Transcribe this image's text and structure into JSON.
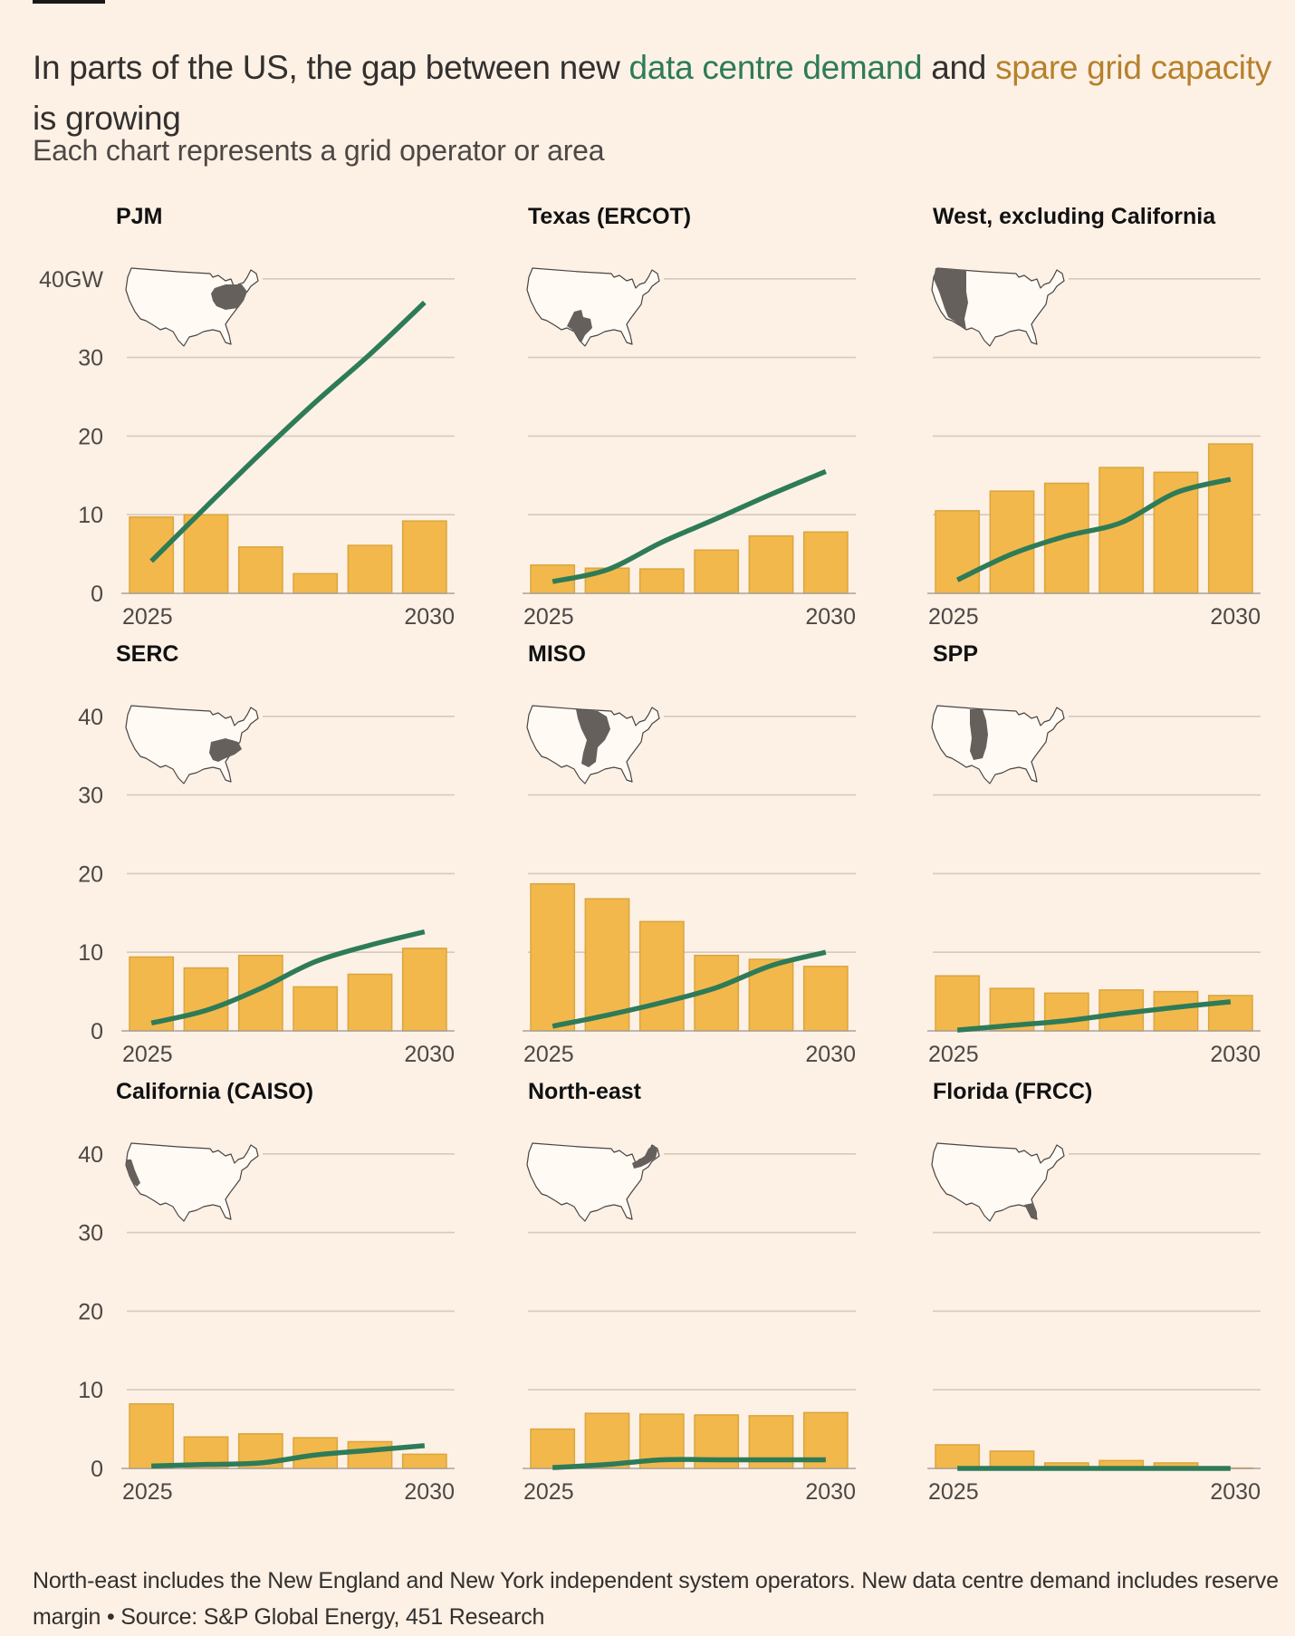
{
  "header": {
    "title_parts": [
      {
        "text": "In parts of the US, the gap between new ",
        "role": "plain"
      },
      {
        "text": "data centre demand",
        "role": "demand"
      },
      {
        "text": " and ",
        "role": "plain"
      },
      {
        "text": "spare grid capacity",
        "role": "capacity"
      },
      {
        "text": " is growing",
        "role": "plain"
      }
    ],
    "subtitle": "Each chart represents a grid operator or area"
  },
  "colors": {
    "background": "#fdf1e6",
    "demand_line": "#2e7b58",
    "capacity_bar": "#f2b84b",
    "capacity_bar_edge": "#dba53e",
    "capacity_text": "#b7812b",
    "gridline": "#d6c9bd",
    "map_highlight": "#66605c",
    "text": "#33302e"
  },
  "chart_data": [
    {
      "type": "bar+line",
      "title": "PJM",
      "region_icon": "us-map-pjm-icon",
      "x": [
        2025,
        2026,
        2027,
        2028,
        2029,
        2030
      ],
      "x_tick_labels": [
        "2025",
        "2030"
      ],
      "y_tick_labels": [
        "0",
        "10",
        "20",
        "30",
        "40GW"
      ],
      "ylim": [
        0,
        40
      ],
      "grid": true,
      "series": [
        {
          "name": "Spare grid capacity",
          "type": "bar",
          "values": [
            9.7,
            10.0,
            5.9,
            2.5,
            6.1,
            9.2
          ]
        },
        {
          "name": "New data centre demand",
          "type": "line",
          "values": [
            4.1,
            11.0,
            17.8,
            24.3,
            30.4,
            37.0
          ]
        }
      ]
    },
    {
      "type": "bar+line",
      "title": "Texas (ERCOT)",
      "region_icon": "us-map-texas-icon",
      "x": [
        2025,
        2026,
        2027,
        2028,
        2029,
        2030
      ],
      "x_tick_labels": [
        "2025",
        "2030"
      ],
      "y_tick_labels": [],
      "ylim": [
        0,
        40
      ],
      "grid": true,
      "series": [
        {
          "name": "Spare grid capacity",
          "type": "bar",
          "values": [
            3.6,
            3.2,
            3.1,
            5.5,
            7.3,
            7.8
          ]
        },
        {
          "name": "New data centre demand",
          "type": "line",
          "values": [
            1.5,
            3.0,
            6.5,
            9.5,
            12.6,
            15.5
          ]
        }
      ]
    },
    {
      "type": "bar+line",
      "title": "West, excluding California",
      "region_icon": "us-map-west-icon",
      "x": [
        2025,
        2026,
        2027,
        2028,
        2029,
        2030
      ],
      "x_tick_labels": [
        "2025",
        "2030"
      ],
      "y_tick_labels": [],
      "ylim": [
        0,
        40
      ],
      "grid": true,
      "series": [
        {
          "name": "Spare grid capacity",
          "type": "bar",
          "values": [
            10.5,
            13.0,
            14.0,
            16.0,
            15.4,
            19.0
          ]
        },
        {
          "name": "New data centre demand",
          "type": "line",
          "values": [
            1.7,
            5.0,
            7.3,
            9.0,
            12.8,
            14.5
          ]
        }
      ]
    },
    {
      "type": "bar+line",
      "title": "SERC",
      "region_icon": "us-map-serc-icon",
      "x": [
        2025,
        2026,
        2027,
        2028,
        2029,
        2030
      ],
      "x_tick_labels": [
        "2025",
        "2030"
      ],
      "y_tick_labels": [
        "0",
        "10",
        "20",
        "30",
        "40"
      ],
      "ylim": [
        0,
        40
      ],
      "grid": true,
      "series": [
        {
          "name": "Spare grid capacity",
          "type": "bar",
          "values": [
            9.4,
            8.0,
            9.6,
            5.6,
            7.2,
            10.5
          ]
        },
        {
          "name": "New data centre demand",
          "type": "line",
          "values": [
            1.0,
            2.6,
            5.4,
            8.8,
            10.9,
            12.6
          ]
        }
      ]
    },
    {
      "type": "bar+line",
      "title": "MISO",
      "region_icon": "us-map-miso-icon",
      "x": [
        2025,
        2026,
        2027,
        2028,
        2029,
        2030
      ],
      "x_tick_labels": [
        "2025",
        "2030"
      ],
      "y_tick_labels": [],
      "ylim": [
        0,
        40
      ],
      "grid": true,
      "series": [
        {
          "name": "Spare grid capacity",
          "type": "bar",
          "values": [
            18.7,
            16.8,
            13.9,
            9.6,
            9.1,
            8.2
          ]
        },
        {
          "name": "New data centre demand",
          "type": "line",
          "values": [
            0.6,
            2.0,
            3.6,
            5.5,
            8.3,
            10.0
          ]
        }
      ]
    },
    {
      "type": "bar+line",
      "title": "SPP",
      "region_icon": "us-map-spp-icon",
      "x": [
        2025,
        2026,
        2027,
        2028,
        2029,
        2030
      ],
      "x_tick_labels": [
        "2025",
        "2030"
      ],
      "y_tick_labels": [],
      "ylim": [
        0,
        40
      ],
      "grid": true,
      "series": [
        {
          "name": "Spare grid capacity",
          "type": "bar",
          "values": [
            7.0,
            5.4,
            4.8,
            5.2,
            5.0,
            4.5
          ]
        },
        {
          "name": "New data centre demand",
          "type": "line",
          "values": [
            0.1,
            0.7,
            1.3,
            2.2,
            3.0,
            3.7
          ]
        }
      ]
    },
    {
      "type": "bar+line",
      "title": "California (CAISO)",
      "region_icon": "us-map-california-icon",
      "x": [
        2025,
        2026,
        2027,
        2028,
        2029,
        2030
      ],
      "x_tick_labels": [
        "2025",
        "2030"
      ],
      "y_tick_labels": [
        "0",
        "10",
        "20",
        "30",
        "40"
      ],
      "ylim": [
        0,
        40
      ],
      "grid": true,
      "series": [
        {
          "name": "Spare grid capacity",
          "type": "bar",
          "values": [
            8.2,
            4.0,
            4.4,
            3.9,
            3.4,
            1.8
          ]
        },
        {
          "name": "New data centre demand",
          "type": "line",
          "values": [
            0.3,
            0.5,
            0.7,
            1.7,
            2.3,
            2.9
          ]
        }
      ]
    },
    {
      "type": "bar+line",
      "title": "North-east",
      "region_icon": "us-map-northeast-icon",
      "x": [
        2025,
        2026,
        2027,
        2028,
        2029,
        2030
      ],
      "x_tick_labels": [
        "2025",
        "2030"
      ],
      "y_tick_labels": [],
      "ylim": [
        0,
        40
      ],
      "grid": true,
      "series": [
        {
          "name": "Spare grid capacity",
          "type": "bar",
          "values": [
            5.0,
            7.0,
            6.9,
            6.8,
            6.7,
            7.1
          ]
        },
        {
          "name": "New data centre demand",
          "type": "line",
          "values": [
            0.1,
            0.5,
            1.1,
            1.1,
            1.1,
            1.1
          ]
        }
      ]
    },
    {
      "type": "bar+line",
      "title": "Florida (FRCC)",
      "region_icon": "us-map-florida-icon",
      "x": [
        2025,
        2026,
        2027,
        2028,
        2029,
        2030
      ],
      "x_tick_labels": [
        "2025",
        "2030"
      ],
      "y_tick_labels": [],
      "ylim": [
        0,
        40
      ],
      "grid": true,
      "series": [
        {
          "name": "Spare grid capacity",
          "type": "bar",
          "values": [
            3.0,
            2.2,
            0.7,
            1.0,
            0.7,
            0.05
          ]
        },
        {
          "name": "New data centre demand",
          "type": "line",
          "values": [
            0.0,
            0.0,
            0.0,
            0.0,
            0.0,
            0.0
          ]
        }
      ]
    }
  ],
  "footer": {
    "note": "North-east includes the New England and New York independent system operators. New data centre demand includes reserve margin",
    "separator": " • ",
    "source": "Source: S&P Global Energy, 451 Research"
  }
}
